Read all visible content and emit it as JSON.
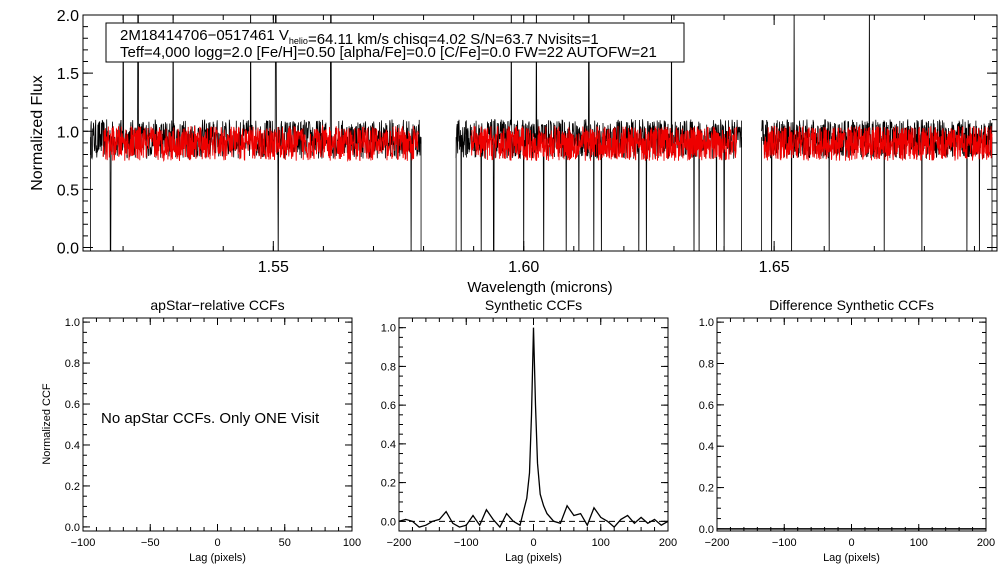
{
  "chart_data": [
    {
      "type": "line",
      "name": "spectrum",
      "xlabel": "Wavelength (microns)",
      "ylabel": "Normalized Flux",
      "xlim": [
        1.512,
        1.6945
      ],
      "ylim": [
        -0.03,
        2.0
      ],
      "xticks": [
        1.55,
        1.6,
        1.65
      ],
      "xtick_labels": [
        "1.55",
        "1.60",
        "1.65"
      ],
      "yticks": [
        0.0,
        0.5,
        1.0,
        1.5,
        2.0
      ],
      "ytick_labels": [
        "0.0",
        "0.5",
        "1.0",
        "1.5",
        "2.0"
      ],
      "legend": {
        "line1": {
          "star_id": "2M18414706−0517461",
          "v_prefix": "V",
          "v_sub": "helio",
          "v_value": "=64.11 km/s",
          "chisq": "chisq=4.02",
          "snr": "S/N=63.7",
          "nvisits": "Nvisits=1"
        },
        "line2": "Teff=4,000 logg=2.0 [Fe/H]=0.50 [alpha/Fe]=0.0 [C/Fe]=0.0 FW=22 AUTOFW=21"
      },
      "detector_ranges": [
        [
          1.5135,
          1.5795
        ],
        [
          1.5865,
          1.6435
        ],
        [
          1.6475,
          1.6935
        ]
      ],
      "model_ranges": [
        [
          1.516,
          1.579
        ],
        [
          1.5895,
          1.6425
        ],
        [
          1.648,
          1.6935
        ]
      ],
      "flux_level": 0.95,
      "model_level": 0.91,
      "spikes": [
        1.52,
        1.523,
        1.53,
        1.5455,
        1.5505,
        1.5615,
        1.5975,
        1.6025,
        1.613,
        1.6295,
        1.654,
        1.669,
        1.6885
      ],
      "dips": [
        1.5175,
        1.551,
        1.5775,
        1.5875,
        1.5915,
        1.594,
        1.6,
        1.604,
        1.6085,
        1.611,
        1.614,
        1.6155,
        1.623,
        1.6245,
        1.634,
        1.635,
        1.6385,
        1.64,
        1.6495,
        1.6535,
        1.661,
        1.672,
        1.6795,
        1.6885,
        1.691
      ],
      "series": [
        {
          "name": "observed",
          "color": "#000000"
        },
        {
          "name": "model",
          "color": "#ee0000"
        }
      ]
    },
    {
      "type": "line",
      "name": "apstar-ccf",
      "title": "apStar−relative CCFs",
      "xlabel": "Lag (pixels)",
      "ylabel": "Normalized CCF",
      "xlim": [
        -100,
        100
      ],
      "ylim": [
        -0.02,
        1.02
      ],
      "xticks": [
        -100,
        -50,
        0,
        50,
        100
      ],
      "xtick_labels": [
        "−100",
        "−50",
        "0",
        "50",
        "100"
      ],
      "yticks": [
        0.0,
        0.2,
        0.4,
        0.6,
        0.8,
        1.0
      ],
      "ytick_labels": [
        "0.0",
        "0.2",
        "0.4",
        "0.6",
        "0.8",
        "1.0"
      ],
      "annotation": "No apStar CCFs.  Only ONE Visit"
    },
    {
      "type": "line",
      "name": "synthetic-ccf",
      "title": "Synthetic CCFs",
      "xlabel": "Lag (pixels)",
      "xlim": [
        -200,
        200
      ],
      "ylim": [
        -0.05,
        1.05
      ],
      "xticks": [
        -200,
        -100,
        0,
        100,
        200
      ],
      "xtick_labels": [
        "−200",
        "−100",
        "0",
        "100",
        "200"
      ],
      "yticks": [
        0.0,
        0.2,
        0.4,
        0.6,
        0.8,
        1.0
      ],
      "ytick_labels": [
        "0.0",
        "0.2",
        "0.4",
        "0.6",
        "0.8",
        "1.0"
      ],
      "reference_line": 0.0,
      "series": [
        {
          "name": "ccf",
          "x": [
            -200,
            -190,
            -180,
            -170,
            -160,
            -150,
            -140,
            -130,
            -120,
            -110,
            -100,
            -90,
            -80,
            -70,
            -60,
            -50,
            -40,
            -30,
            -20,
            -15,
            -10,
            -6,
            -3,
            0,
            3,
            6,
            10,
            15,
            20,
            30,
            40,
            50,
            60,
            70,
            80,
            90,
            100,
            110,
            120,
            130,
            140,
            150,
            160,
            170,
            180,
            190,
            200
          ],
          "values": [
            0.0,
            0.01,
            0.0,
            -0.03,
            -0.02,
            0.0,
            0.01,
            0.05,
            -0.01,
            -0.03,
            -0.02,
            0.03,
            -0.02,
            0.06,
            0.01,
            -0.03,
            0.04,
            0.0,
            -0.02,
            0.05,
            0.12,
            0.25,
            0.55,
            1.0,
            0.6,
            0.3,
            0.14,
            0.08,
            0.04,
            0.0,
            -0.01,
            0.08,
            0.03,
            0.04,
            -0.02,
            0.07,
            0.02,
            0.0,
            -0.03,
            0.01,
            0.03,
            -0.01,
            0.02,
            -0.01,
            0.01,
            -0.02,
            0.0
          ]
        }
      ]
    },
    {
      "type": "line",
      "name": "difference-ccf",
      "title": "Difference Synthetic CCFs",
      "xlabel": "Lag (pixels)",
      "xlim": [
        -200,
        200
      ],
      "ylim": [
        -0.01,
        1.02
      ],
      "xticks": [
        -200,
        -100,
        0,
        100,
        200
      ],
      "xtick_labels": [
        "−200",
        "−100",
        "0",
        "100",
        "200"
      ],
      "yticks": [
        0.0,
        0.2,
        0.4,
        0.6,
        0.8,
        1.0
      ],
      "ytick_labels": [
        "0.0",
        "0.2",
        "0.4",
        "0.6",
        "0.8",
        "1.0"
      ],
      "series": [
        {
          "name": "difference",
          "x": [
            -200,
            200
          ],
          "values": [
            0.0,
            0.0
          ]
        }
      ]
    }
  ]
}
